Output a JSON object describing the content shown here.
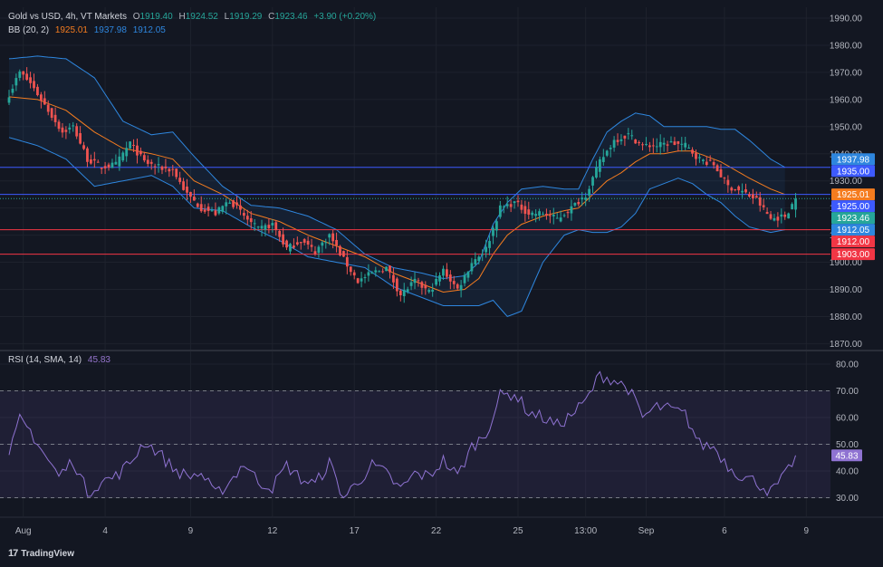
{
  "header": {
    "symbol": "Gold vs USD, 4h, VT Markets",
    "o_label": "O",
    "o": "1919.40",
    "h_label": "H",
    "h": "1924.52",
    "l_label": "L",
    "l": "1919.29",
    "c_label": "C",
    "c": "1923.46",
    "change": "+3.90 (+0.20%)",
    "bb_label": "BB (20, 2)",
    "bb_basis": "1925.01",
    "bb_upper": "1937.98",
    "bb_lower": "1912.05",
    "rsi_label": "RSI (14, SMA, 14)",
    "rsi_value": "45.83"
  },
  "branding": {
    "name": "TradingView"
  },
  "colors": {
    "background": "#131722",
    "up": "#26a69a",
    "down": "#ef5350",
    "basis": "#f57c1f",
    "band": "#2e86de",
    "rsi": "#8f73d2",
    "resistance_line": "#3d5afe",
    "support_line": "#f23645"
  },
  "chart_data": [
    {
      "type": "candlestick",
      "title": "Gold vs USD, 4h",
      "y_ticks": [
        1870,
        1880,
        1890,
        1900,
        1910,
        1920,
        1930,
        1940,
        1950,
        1960,
        1970,
        1980,
        1990
      ],
      "ylim": [
        1866,
        1992
      ],
      "x_ticks": [
        "Aug",
        "4",
        "9",
        "12",
        "17",
        "22",
        "25",
        "13:00",
        "Sep",
        "6",
        "9"
      ],
      "horizontal_lines": [
        1935.0,
        1925.0,
        1912.0,
        1903.0
      ],
      "price_labels": [
        {
          "value": 1937.98,
          "text": "1937.98",
          "color": "#2e86de"
        },
        {
          "value": 1935.0,
          "text": "1935.00",
          "color": "#3d5afe"
        },
        {
          "value": 1925.01,
          "text": "1925.01",
          "color": "#f57c1f"
        },
        {
          "value": 1925.0,
          "text": "1925.00",
          "color": "#3d5afe"
        },
        {
          "value": 1923.46,
          "text": "1923.46",
          "color": "#26a69a"
        },
        {
          "value": 1912.05,
          "text": "1912.05",
          "color": "#2e86de"
        },
        {
          "value": 1912.0,
          "text": "1912.00",
          "color": "#f23645"
        },
        {
          "value": 1903.0,
          "text": "1903.00",
          "color": "#f23645"
        }
      ],
      "close_anchors": [
        [
          0,
          1962
        ],
        [
          3,
          1970
        ],
        [
          6,
          1966
        ],
        [
          10,
          1958
        ],
        [
          15,
          1948
        ],
        [
          18,
          1950
        ],
        [
          22,
          1938
        ],
        [
          26,
          1935
        ],
        [
          30,
          1936
        ],
        [
          34,
          1944
        ],
        [
          38,
          1937
        ],
        [
          42,
          1935
        ],
        [
          46,
          1934
        ],
        [
          50,
          1925
        ],
        [
          54,
          1920
        ],
        [
          58,
          1918
        ],
        [
          62,
          1923
        ],
        [
          66,
          1917
        ],
        [
          70,
          1912
        ],
        [
          74,
          1914
        ],
        [
          78,
          1905
        ],
        [
          82,
          1908
        ],
        [
          86,
          1904
        ],
        [
          90,
          1910
        ],
        [
          94,
          1901
        ],
        [
          98,
          1893
        ],
        [
          102,
          1896
        ],
        [
          106,
          1898
        ],
        [
          110,
          1888
        ],
        [
          114,
          1893
        ],
        [
          118,
          1889
        ],
        [
          122,
          1897
        ],
        [
          126,
          1890
        ],
        [
          130,
          1900
        ],
        [
          134,
          1905
        ],
        [
          138,
          1920
        ],
        [
          142,
          1922
        ],
        [
          146,
          1918
        ],
        [
          150,
          1918
        ],
        [
          154,
          1916
        ],
        [
          158,
          1920
        ],
        [
          162,
          1925
        ],
        [
          166,
          1937
        ],
        [
          170,
          1945
        ],
        [
          174,
          1947
        ],
        [
          178,
          1943
        ],
        [
          182,
          1943
        ],
        [
          186,
          1944
        ],
        [
          190,
          1943
        ],
        [
          194,
          1938
        ],
        [
          198,
          1936
        ],
        [
          202,
          1928
        ],
        [
          206,
          1926
        ],
        [
          210,
          1923
        ],
        [
          214,
          1916
        ],
        [
          218,
          1917
        ],
        [
          221,
          1923.46
        ]
      ],
      "bb_upper_anchors": [
        [
          0,
          1975
        ],
        [
          8,
          1976
        ],
        [
          16,
          1975
        ],
        [
          24,
          1968
        ],
        [
          32,
          1952
        ],
        [
          40,
          1947
        ],
        [
          46,
          1948
        ],
        [
          52,
          1939
        ],
        [
          60,
          1928
        ],
        [
          68,
          1921
        ],
        [
          76,
          1920
        ],
        [
          84,
          1917
        ],
        [
          92,
          1912
        ],
        [
          100,
          1903
        ],
        [
          108,
          1898
        ],
        [
          116,
          1896
        ],
        [
          122,
          1894
        ],
        [
          128,
          1895
        ],
        [
          132,
          1900
        ],
        [
          136,
          1914
        ],
        [
          140,
          1922
        ],
        [
          144,
          1927
        ],
        [
          150,
          1928
        ],
        [
          156,
          1927
        ],
        [
          160,
          1927
        ],
        [
          164,
          1938
        ],
        [
          168,
          1948
        ],
        [
          172,
          1952
        ],
        [
          176,
          1955
        ],
        [
          180,
          1954
        ],
        [
          184,
          1950
        ],
        [
          188,
          1950
        ],
        [
          192,
          1950
        ],
        [
          196,
          1950
        ],
        [
          200,
          1949
        ],
        [
          204,
          1949
        ],
        [
          208,
          1945
        ],
        [
          214,
          1938
        ],
        [
          218,
          1935
        ]
      ],
      "bb_basis_anchors": [
        [
          0,
          1961
        ],
        [
          8,
          1960
        ],
        [
          16,
          1956
        ],
        [
          24,
          1948
        ],
        [
          32,
          1942
        ],
        [
          40,
          1940
        ],
        [
          46,
          1938
        ],
        [
          52,
          1930
        ],
        [
          60,
          1925
        ],
        [
          68,
          1918
        ],
        [
          76,
          1915
        ],
        [
          84,
          1910
        ],
        [
          92,
          1906
        ],
        [
          100,
          1902
        ],
        [
          108,
          1896
        ],
        [
          116,
          1892
        ],
        [
          122,
          1889
        ],
        [
          128,
          1890
        ],
        [
          132,
          1894
        ],
        [
          136,
          1903
        ],
        [
          140,
          1910
        ],
        [
          144,
          1914
        ],
        [
          150,
          1917
        ],
        [
          156,
          1919
        ],
        [
          160,
          1920
        ],
        [
          164,
          1925
        ],
        [
          168,
          1930
        ],
        [
          172,
          1933
        ],
        [
          176,
          1937
        ],
        [
          180,
          1940
        ],
        [
          184,
          1940
        ],
        [
          188,
          1941
        ],
        [
          192,
          1941
        ],
        [
          196,
          1939
        ],
        [
          200,
          1937
        ],
        [
          204,
          1934
        ],
        [
          208,
          1931
        ],
        [
          214,
          1927
        ],
        [
          218,
          1925
        ]
      ],
      "bb_lower_anchors": [
        [
          0,
          1946
        ],
        [
          8,
          1943
        ],
        [
          16,
          1938
        ],
        [
          24,
          1928
        ],
        [
          32,
          1930
        ],
        [
          40,
          1932
        ],
        [
          46,
          1928
        ],
        [
          52,
          1920
        ],
        [
          60,
          1919
        ],
        [
          68,
          1913
        ],
        [
          76,
          1908
        ],
        [
          84,
          1902
        ],
        [
          92,
          1900
        ],
        [
          100,
          1898
        ],
        [
          108,
          1891
        ],
        [
          116,
          1887
        ],
        [
          122,
          1884
        ],
        [
          128,
          1884
        ],
        [
          132,
          1884
        ],
        [
          136,
          1886
        ],
        [
          140,
          1880
        ],
        [
          144,
          1882
        ],
        [
          150,
          1900
        ],
        [
          156,
          1910
        ],
        [
          160,
          1912
        ],
        [
          164,
          1911
        ],
        [
          168,
          1911
        ],
        [
          172,
          1913
        ],
        [
          176,
          1918
        ],
        [
          180,
          1927
        ],
        [
          184,
          1929
        ],
        [
          188,
          1931
        ],
        [
          192,
          1929
        ],
        [
          196,
          1925
        ],
        [
          200,
          1922
        ],
        [
          204,
          1917
        ],
        [
          208,
          1913
        ],
        [
          214,
          1911
        ],
        [
          218,
          1912
        ]
      ]
    },
    {
      "type": "line",
      "title": "RSI (14, SMA, 14)",
      "y_ticks": [
        30,
        40,
        50,
        60,
        70,
        80
      ],
      "ylim": [
        26,
        83
      ],
      "band": [
        30,
        70
      ],
      "middle": 50,
      "last_value": 45.83,
      "rsi_anchors": [
        [
          0,
          46
        ],
        [
          3,
          59
        ],
        [
          6,
          55
        ],
        [
          10,
          46
        ],
        [
          14,
          38
        ],
        [
          18,
          44
        ],
        [
          22,
          32
        ],
        [
          26,
          36
        ],
        [
          30,
          38
        ],
        [
          34,
          43
        ],
        [
          38,
          51
        ],
        [
          42,
          47
        ],
        [
          46,
          41
        ],
        [
          50,
          38
        ],
        [
          54,
          39
        ],
        [
          58,
          31
        ],
        [
          62,
          36
        ],
        [
          66,
          43
        ],
        [
          70,
          36
        ],
        [
          74,
          34
        ],
        [
          78,
          42
        ],
        [
          82,
          37
        ],
        [
          86,
          35
        ],
        [
          90,
          43
        ],
        [
          94,
          30
        ],
        [
          98,
          36
        ],
        [
          102,
          42
        ],
        [
          106,
          39
        ],
        [
          110,
          33
        ],
        [
          114,
          39
        ],
        [
          118,
          38
        ],
        [
          122,
          44
        ],
        [
          126,
          38
        ],
        [
          130,
          49
        ],
        [
          134,
          54
        ],
        [
          138,
          68
        ],
        [
          142,
          69
        ],
        [
          146,
          62
        ],
        [
          150,
          60
        ],
        [
          154,
          57
        ],
        [
          158,
          61
        ],
        [
          162,
          66
        ],
        [
          166,
          76
        ],
        [
          170,
          74
        ],
        [
          174,
          71
        ],
        [
          178,
          60
        ],
        [
          182,
          64
        ],
        [
          186,
          63
        ],
        [
          190,
          61
        ],
        [
          194,
          50
        ],
        [
          198,
          49
        ],
        [
          202,
          42
        ],
        [
          206,
          38
        ],
        [
          210,
          36
        ],
        [
          214,
          32
        ],
        [
          218,
          38
        ],
        [
          221,
          45.83
        ]
      ]
    }
  ]
}
